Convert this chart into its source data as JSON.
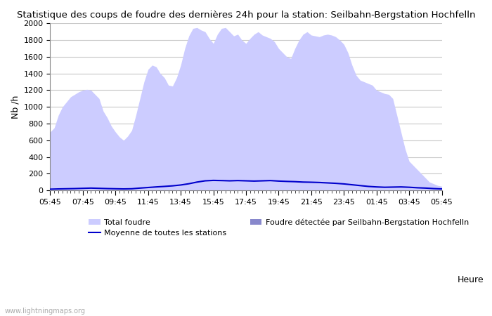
{
  "title": "Statistique des coups de foudre des dernières 24h pour la station: Seilbahn-Bergstation Hochfelln",
  "xlabel": "Heure",
  "ylabel": "Nb /h",
  "xlim": [
    0,
    24
  ],
  "ylim": [
    0,
    2000
  ],
  "yticks": [
    0,
    200,
    400,
    600,
    800,
    1000,
    1200,
    1400,
    1600,
    1800,
    2000
  ],
  "xtick_labels": [
    "05:45",
    "07:45",
    "09:45",
    "11:45",
    "13:45",
    "15:45",
    "17:45",
    "19:45",
    "21:45",
    "23:45",
    "01:45",
    "03:45",
    "05:45"
  ],
  "background_color": "#ffffff",
  "plot_bg_color": "#ffffff",
  "grid_color": "#c8c8c8",
  "total_foudre_color": "#ccccff",
  "detected_foudre_color": "#8888cc",
  "avg_line_color": "#0000cc",
  "watermark": "www.lightningmaps.org",
  "legend_total": "Total foudre",
  "legend_avg": "Moyenne de toutes les stations",
  "legend_detected": "Foudre détectée par Seilbahn-Bergstation Hochfelln",
  "tf_x": [
    0.0,
    0.25,
    0.5,
    0.75,
    1.0,
    1.25,
    1.5,
    1.75,
    2.0,
    2.25,
    2.5,
    2.75,
    3.0,
    3.25,
    3.5,
    3.75,
    4.0,
    4.25,
    4.5,
    4.75,
    5.0,
    5.25,
    5.5,
    5.75,
    6.0,
    6.25,
    6.5,
    6.75,
    7.0,
    7.25,
    7.5,
    7.75,
    8.0,
    8.25,
    8.5,
    8.75,
    9.0,
    9.25,
    9.5,
    9.75,
    10.0,
    10.25,
    10.5,
    10.75,
    11.0,
    11.25,
    11.5,
    11.75,
    12.0,
    12.25,
    12.5,
    12.75,
    13.0,
    13.25,
    13.5,
    13.75,
    14.0,
    14.25,
    14.5,
    14.75,
    15.0,
    15.25,
    15.5,
    15.75,
    16.0,
    16.25,
    16.5,
    16.75,
    17.0,
    17.25,
    17.5,
    17.75,
    18.0,
    18.25,
    18.5,
    18.75,
    19.0,
    19.25,
    19.5,
    19.75,
    20.0,
    20.25,
    20.5,
    20.75,
    21.0,
    21.25,
    21.5,
    21.75,
    22.0,
    22.25,
    22.5,
    22.75,
    23.0,
    23.25,
    23.5,
    23.75,
    24.0
  ],
  "tf_y": [
    700,
    750,
    900,
    1000,
    1060,
    1120,
    1150,
    1180,
    1200,
    1210,
    1200,
    1150,
    1100,
    950,
    870,
    770,
    700,
    640,
    600,
    650,
    720,
    900,
    1100,
    1300,
    1450,
    1500,
    1480,
    1400,
    1350,
    1260,
    1250,
    1350,
    1500,
    1700,
    1850,
    1940,
    1950,
    1920,
    1900,
    1820,
    1760,
    1870,
    1940,
    1950,
    1900,
    1850,
    1870,
    1800,
    1760,
    1820,
    1870,
    1900,
    1860,
    1840,
    1820,
    1780,
    1700,
    1650,
    1600,
    1580,
    1700,
    1800,
    1870,
    1900,
    1860,
    1850,
    1840,
    1860,
    1870,
    1860,
    1840,
    1800,
    1750,
    1650,
    1500,
    1380,
    1320,
    1300,
    1280,
    1260,
    1200,
    1180,
    1160,
    1150,
    1100,
    900,
    700,
    500,
    350,
    300,
    250,
    200,
    150,
    100,
    80,
    60,
    50
  ],
  "det_y": [
    0,
    0,
    0,
    0,
    0,
    0,
    0,
    0,
    0,
    0,
    0,
    0,
    0,
    0,
    0,
    0,
    0,
    0,
    0,
    0,
    0,
    0,
    0,
    0,
    0,
    0,
    0,
    0,
    0,
    0,
    0,
    0,
    0,
    0,
    0,
    0,
    0,
    0,
    0,
    0,
    0,
    0,
    0,
    0,
    0,
    0,
    0,
    0,
    0,
    0,
    0,
    0,
    0,
    0,
    0,
    0,
    0,
    0,
    0,
    0,
    0,
    0,
    0,
    0,
    0,
    0,
    0,
    0,
    0,
    0,
    0,
    0,
    0,
    0,
    0,
    0,
    0,
    0,
    0,
    0,
    0,
    0,
    0,
    0,
    0,
    0,
    0,
    0,
    0,
    0,
    0,
    0,
    0,
    0,
    0,
    0,
    0
  ],
  "avg_x": [
    0.0,
    0.5,
    1.0,
    1.5,
    2.0,
    2.5,
    3.0,
    3.5,
    4.0,
    4.5,
    5.0,
    5.5,
    6.0,
    6.5,
    7.0,
    7.5,
    8.0,
    8.5,
    9.0,
    9.5,
    10.0,
    10.5,
    11.0,
    11.5,
    12.0,
    12.5,
    13.0,
    13.5,
    14.0,
    14.5,
    15.0,
    15.5,
    16.0,
    16.5,
    17.0,
    17.5,
    18.0,
    18.5,
    19.0,
    19.5,
    20.0,
    20.5,
    21.0,
    21.5,
    22.0,
    22.5,
    23.0,
    23.5,
    24.0
  ],
  "avg_y": [
    15,
    18,
    20,
    22,
    25,
    28,
    25,
    22,
    20,
    18,
    20,
    28,
    35,
    42,
    48,
    55,
    65,
    80,
    100,
    115,
    120,
    118,
    115,
    118,
    115,
    112,
    115,
    118,
    112,
    108,
    105,
    100,
    98,
    95,
    90,
    85,
    78,
    68,
    58,
    48,
    42,
    38,
    40,
    42,
    38,
    32,
    28,
    22,
    18
  ]
}
